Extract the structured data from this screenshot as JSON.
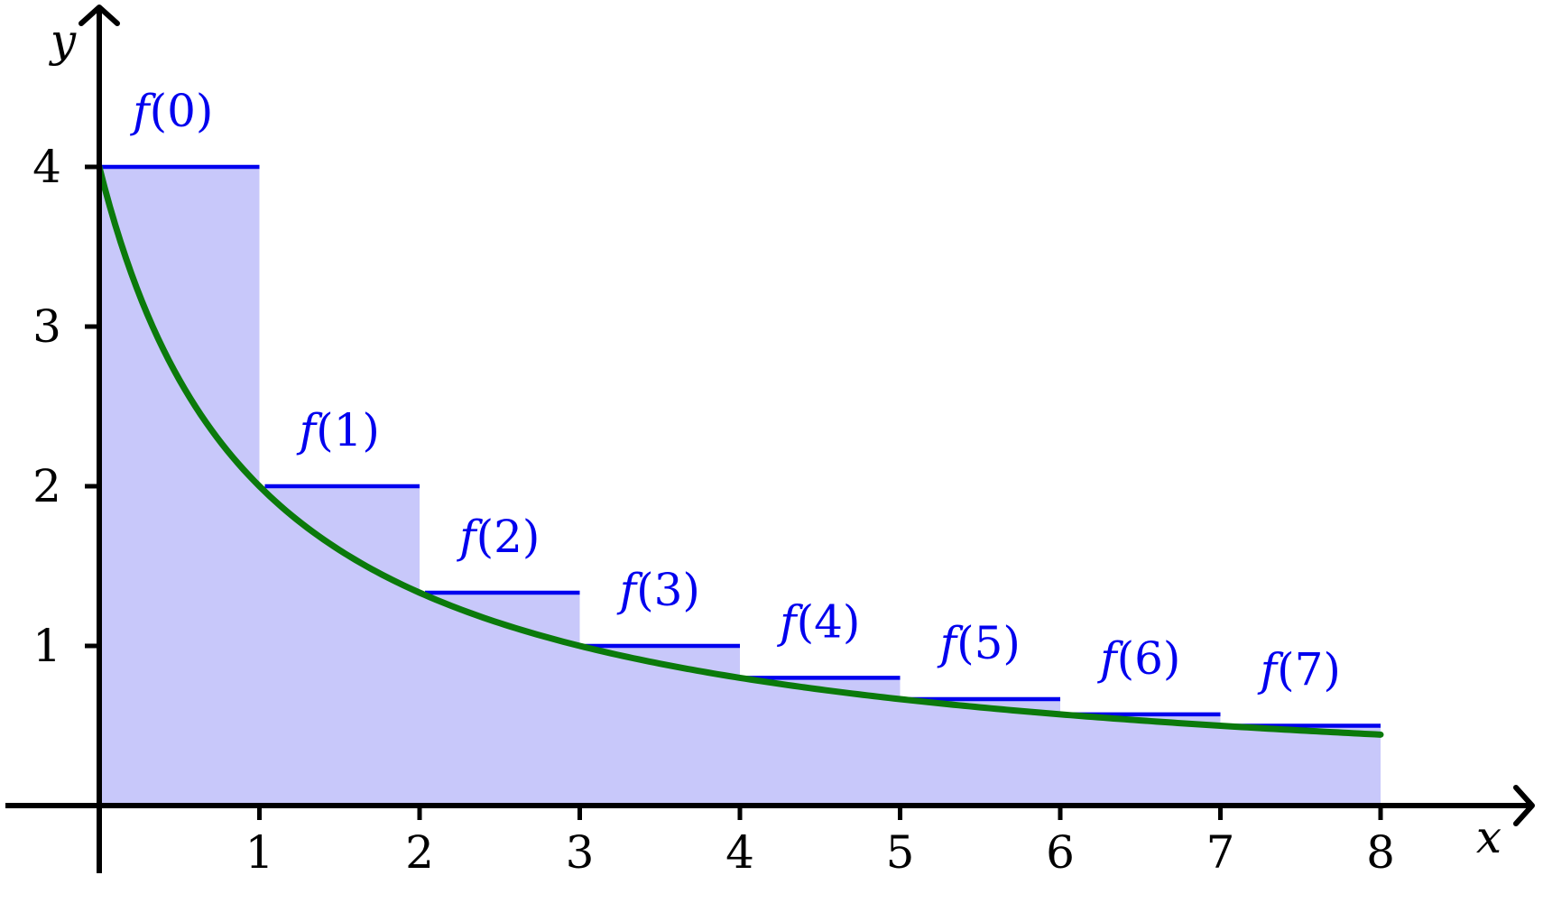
{
  "chart_data": {
    "type": "bar",
    "xlabel": "x",
    "ylabel": "y",
    "xlim": [
      0,
      8
    ],
    "ylim": [
      0,
      4
    ],
    "x_ticks": [
      "1",
      "2",
      "3",
      "4",
      "5",
      "6",
      "7",
      "8"
    ],
    "y_ticks": [
      "1",
      "2",
      "3",
      "4"
    ],
    "grid": false,
    "series": [
      {
        "type": "bar",
        "categories": [
          "0",
          "1",
          "2",
          "3",
          "4",
          "5",
          "6",
          "7"
        ],
        "labels": [
          "f(0)",
          "f(1)",
          "f(2)",
          "f(3)",
          "f(4)",
          "f(5)",
          "f(6)",
          "f(7)"
        ],
        "values": [
          4,
          2,
          1.3333,
          1,
          0.8,
          0.6667,
          0.5714,
          0.5
        ],
        "bar_width": 1
      },
      {
        "type": "line",
        "formula": "4/(x+1)",
        "x_range": [
          0,
          8
        ]
      }
    ],
    "colors": {
      "bar_fill": "#c8c8fa",
      "bar_top": "#0000ee",
      "curve": "#0b7a0b",
      "axis": "#000000",
      "label": "#0000ee"
    }
  }
}
